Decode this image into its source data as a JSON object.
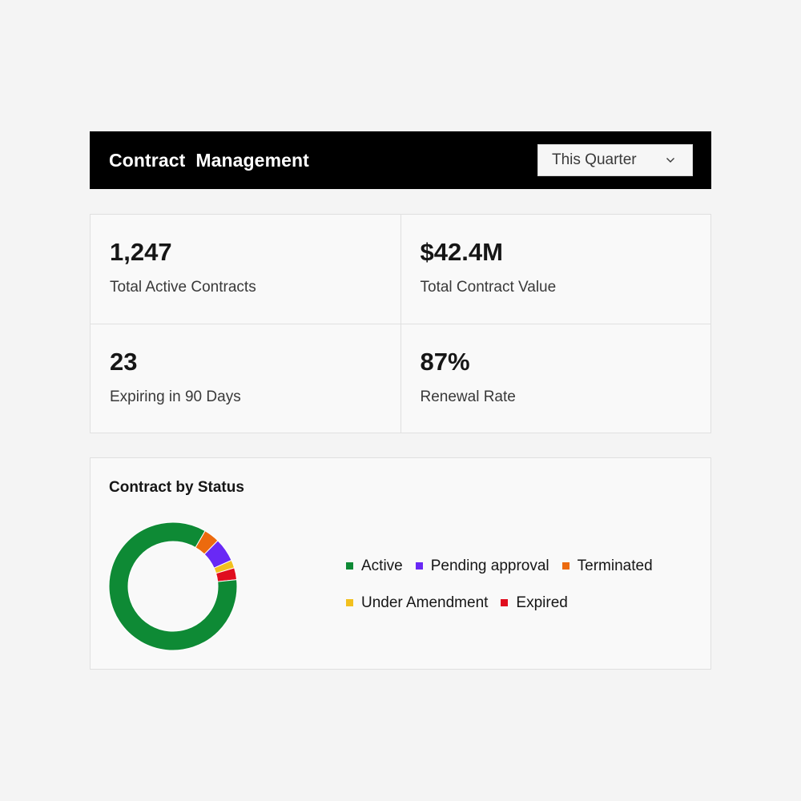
{
  "header": {
    "title": "Contract  Management",
    "period_select": {
      "value": "This Quarter"
    }
  },
  "kpis": [
    {
      "value": "1,247",
      "label": "Total Active Contracts"
    },
    {
      "value": "$42.4M",
      "label": "Total Contract Value"
    },
    {
      "value": "23",
      "label": "Expiring in 90 Days"
    },
    {
      "value": "87%",
      "label": "Renewal Rate"
    }
  ],
  "chart_card": {
    "title": "Contract by Status"
  },
  "chart_data": {
    "type": "pie",
    "donut": true,
    "title": "Contract by Status",
    "legend": "right",
    "series": [
      {
        "name": "Active",
        "value": 85,
        "color": "#0e8a35"
      },
      {
        "name": "Pending approval",
        "value": 6,
        "color": "#6929f5"
      },
      {
        "name": "Terminated",
        "value": 4,
        "color": "#ec6a0e"
      },
      {
        "name": "Under Amendment",
        "value": 2,
        "color": "#f2c01e"
      },
      {
        "name": "Expired",
        "value": 3,
        "color": "#e00d1e"
      }
    ]
  },
  "colors": {
    "header_bg": "#000000",
    "page_bg": "#f4f4f4",
    "card_bg": "#f9f9f9"
  },
  "icons": {
    "period_select": "chevron-down-icon"
  }
}
